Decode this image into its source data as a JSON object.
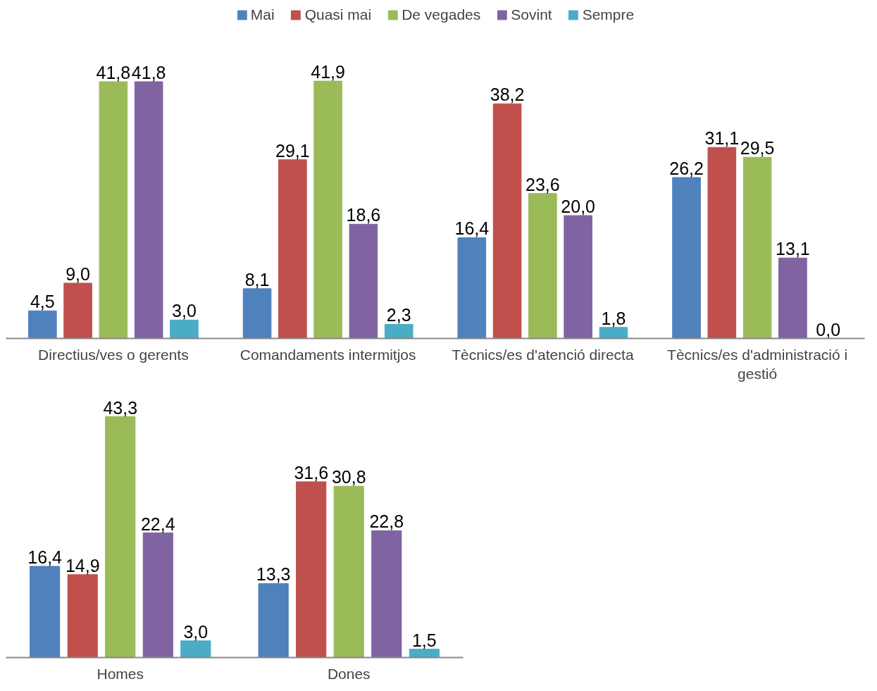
{
  "chart_data": [
    {
      "type": "bar",
      "categories": [
        "Directius/ves o gerents",
        "Comandaments intermitjos",
        "Tècnics/es d'atenció directa",
        "Tècnics/es d'administració i gestió"
      ],
      "legend": "top",
      "grid": false,
      "series": [
        {
          "name": "Mai",
          "color": "#4f81bd",
          "values": [
            4.5,
            8.1,
            16.4,
            26.2
          ],
          "value_labels": [
            "4,5",
            "8,1",
            "16,4",
            "26,2"
          ]
        },
        {
          "name": "Quasi mai",
          "color": "#c0504d",
          "values": [
            9.0,
            29.1,
            38.2,
            31.1
          ],
          "value_labels": [
            "9,0",
            "29,1",
            "38,2",
            "31,1"
          ]
        },
        {
          "name": "De vegades",
          "color": "#9bbb59",
          "values": [
            41.8,
            41.9,
            23.6,
            29.5
          ],
          "value_labels": [
            "41,8",
            "41,9",
            "23,6",
            "29,5"
          ]
        },
        {
          "name": "Sovint",
          "color": "#8064a2",
          "values": [
            41.8,
            18.6,
            20.0,
            13.1
          ],
          "value_labels": [
            "41,8",
            "18,6",
            "20,0",
            "13,1"
          ]
        },
        {
          "name": "Sempre",
          "color": "#4bacc6",
          "values": [
            3.0,
            2.3,
            1.8,
            0.0
          ],
          "value_labels": [
            "3,0",
            "2,3",
            "1,8",
            "0,0"
          ]
        }
      ]
    },
    {
      "type": "bar",
      "categories": [
        "Homes",
        "Dones"
      ],
      "grid": false,
      "series": [
        {
          "color": "#4f81bd",
          "values": [
            16.4,
            13.3
          ],
          "value_labels": [
            "16,4",
            "13,3"
          ]
        },
        {
          "color": "#c0504d",
          "values": [
            14.9,
            31.6
          ],
          "value_labels": [
            "14,9",
            "31,6"
          ]
        },
        {
          "color": "#9bbb59",
          "values": [
            43.3,
            30.8
          ],
          "value_labels": [
            "43,3",
            "30,8"
          ]
        },
        {
          "color": "#8064a2",
          "values": [
            22.4,
            22.8
          ],
          "value_labels": [
            "22,4",
            "22,8"
          ]
        },
        {
          "color": "#4bacc6",
          "values": [
            3.0,
            1.5
          ],
          "value_labels": [
            "3,0",
            "1,5"
          ]
        }
      ]
    }
  ]
}
